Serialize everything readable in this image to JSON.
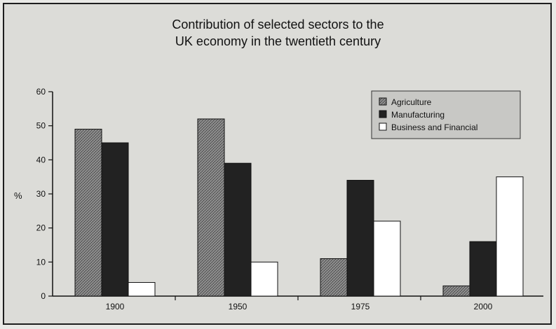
{
  "chart_data": {
    "type": "bar",
    "title": [
      "Contribution of selected sectors to the",
      "UK economy in the twentieth century"
    ],
    "xlabel": "",
    "ylabel": "%",
    "ylim": [
      0,
      60
    ],
    "yticks": [
      0,
      10,
      20,
      30,
      40,
      50,
      60
    ],
    "grid": false,
    "legend_position": "top-right",
    "categories": [
      "1900",
      "1950",
      "1975",
      "2000"
    ],
    "series": [
      {
        "name": "Agriculture",
        "color": "#777777",
        "pattern": "stipple",
        "values": [
          49,
          52,
          11,
          3
        ]
      },
      {
        "name": "Manufacturing",
        "color": "#222222",
        "pattern": "solid",
        "values": [
          45,
          39,
          34,
          16
        ]
      },
      {
        "name": "Business and Financial",
        "color": "#ffffff",
        "pattern": "none",
        "values": [
          4,
          10,
          22,
          35
        ]
      }
    ]
  }
}
